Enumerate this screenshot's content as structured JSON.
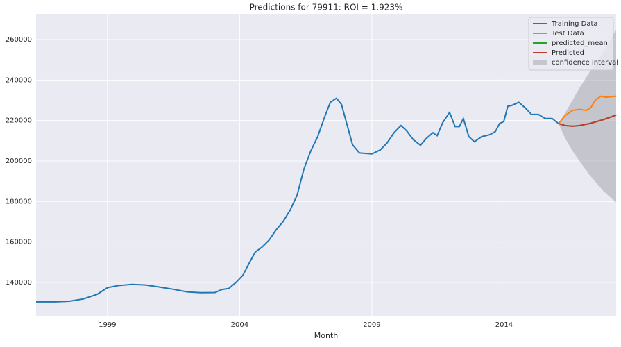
{
  "chart_data": {
    "type": "line",
    "title": "Predictions for 79911: ROI = 1.923%",
    "x_label": "Month",
    "xlim": [
      1996.3,
      2018.24
    ],
    "xticks": [
      1999,
      2004,
      2009,
      2014
    ],
    "ylim": [
      123500,
      272700
    ],
    "yticks": [
      140000,
      160000,
      180000,
      200000,
      220000,
      240000,
      260000
    ],
    "grid": true,
    "legend": "upper right",
    "series": [
      {
        "name": "Training Data",
        "color": "#1f77b4",
        "x": [
          1996.3,
          1997.03,
          1997.56,
          1998.08,
          1998.61,
          1999.0,
          1999.39,
          1999.92,
          2000.44,
          2000.97,
          2001.49,
          2002.02,
          2002.54,
          2003.07,
          2003.33,
          2003.59,
          2003.86,
          2004.12,
          2004.38,
          2004.59,
          2004.85,
          2005.12,
          2005.38,
          2005.64,
          2005.9,
          2006.17,
          2006.43,
          2006.69,
          2006.95,
          2007.22,
          2007.43,
          2007.66,
          2007.85,
          2008.06,
          2008.27,
          2008.53,
          2009.0,
          2009.32,
          2009.58,
          2009.84,
          2010.1,
          2010.31,
          2010.57,
          2010.84,
          2011.05,
          2011.31,
          2011.47,
          2011.68,
          2011.94,
          2012.15,
          2012.31,
          2012.46,
          2012.67,
          2012.88,
          2013.15,
          2013.46,
          2013.67,
          2013.83,
          2013.99,
          2014.14,
          2014.3,
          2014.56,
          2014.82,
          2015.04,
          2015.3,
          2015.56,
          2015.82,
          2016.06
        ],
        "values": [
          130400,
          130400,
          130700,
          131800,
          134100,
          137400,
          138400,
          139000,
          138700,
          137700,
          136600,
          135300,
          134900,
          135000,
          136500,
          137000,
          140000,
          143500,
          150000,
          155000,
          157500,
          161000,
          166000,
          170000,
          175500,
          183000,
          196000,
          205000,
          212000,
          222000,
          229000,
          231000,
          228000,
          218000,
          208000,
          204000,
          203500,
          205500,
          209000,
          214000,
          217500,
          215000,
          210500,
          207800,
          211000,
          214000,
          212500,
          219000,
          224000,
          217000,
          217000,
          221000,
          212000,
          209500,
          212000,
          213000,
          214500,
          218500,
          219500,
          227000,
          227500,
          229000,
          226000,
          223000,
          223000,
          221000,
          221000,
          218500
        ]
      },
      {
        "name": "Test Data",
        "color": "#ff7f0e",
        "x": [
          2016.06,
          2016.32,
          2016.59,
          2016.85,
          2017.11,
          2017.29,
          2017.45,
          2017.66,
          2017.87,
          2018.24
        ],
        "values": [
          218500,
          222500,
          225000,
          225500,
          225000,
          226500,
          230000,
          232000,
          231500,
          232000
        ]
      },
      {
        "name": "predicted_mean",
        "color": "#2ca02c",
        "x": [
          2016.06,
          2016.32,
          2016.59,
          2016.85,
          2017.24,
          2017.77,
          2018.24
        ],
        "values": [
          218500,
          217500,
          217200,
          217500,
          218500,
          220500,
          222700
        ]
      },
      {
        "name": "Predicted",
        "color": "#c0392b",
        "x": [
          2016.06,
          2016.32,
          2016.59,
          2016.85,
          2017.24,
          2017.77,
          2018.24
        ],
        "values": [
          218500,
          217500,
          217200,
          217500,
          218500,
          220500,
          222700
        ]
      }
    ],
    "band": {
      "name": "confidence interval",
      "color": "#a0a0a8",
      "x": [
        2016.06,
        2016.32,
        2016.59,
        2016.85,
        2017.24,
        2017.77,
        2018.24
      ],
      "lower": [
        218500,
        211000,
        205000,
        200000,
        193000,
        185000,
        179500
      ],
      "upper": [
        218500,
        224000,
        230000,
        236000,
        244000,
        254000,
        265000
      ]
    }
  }
}
